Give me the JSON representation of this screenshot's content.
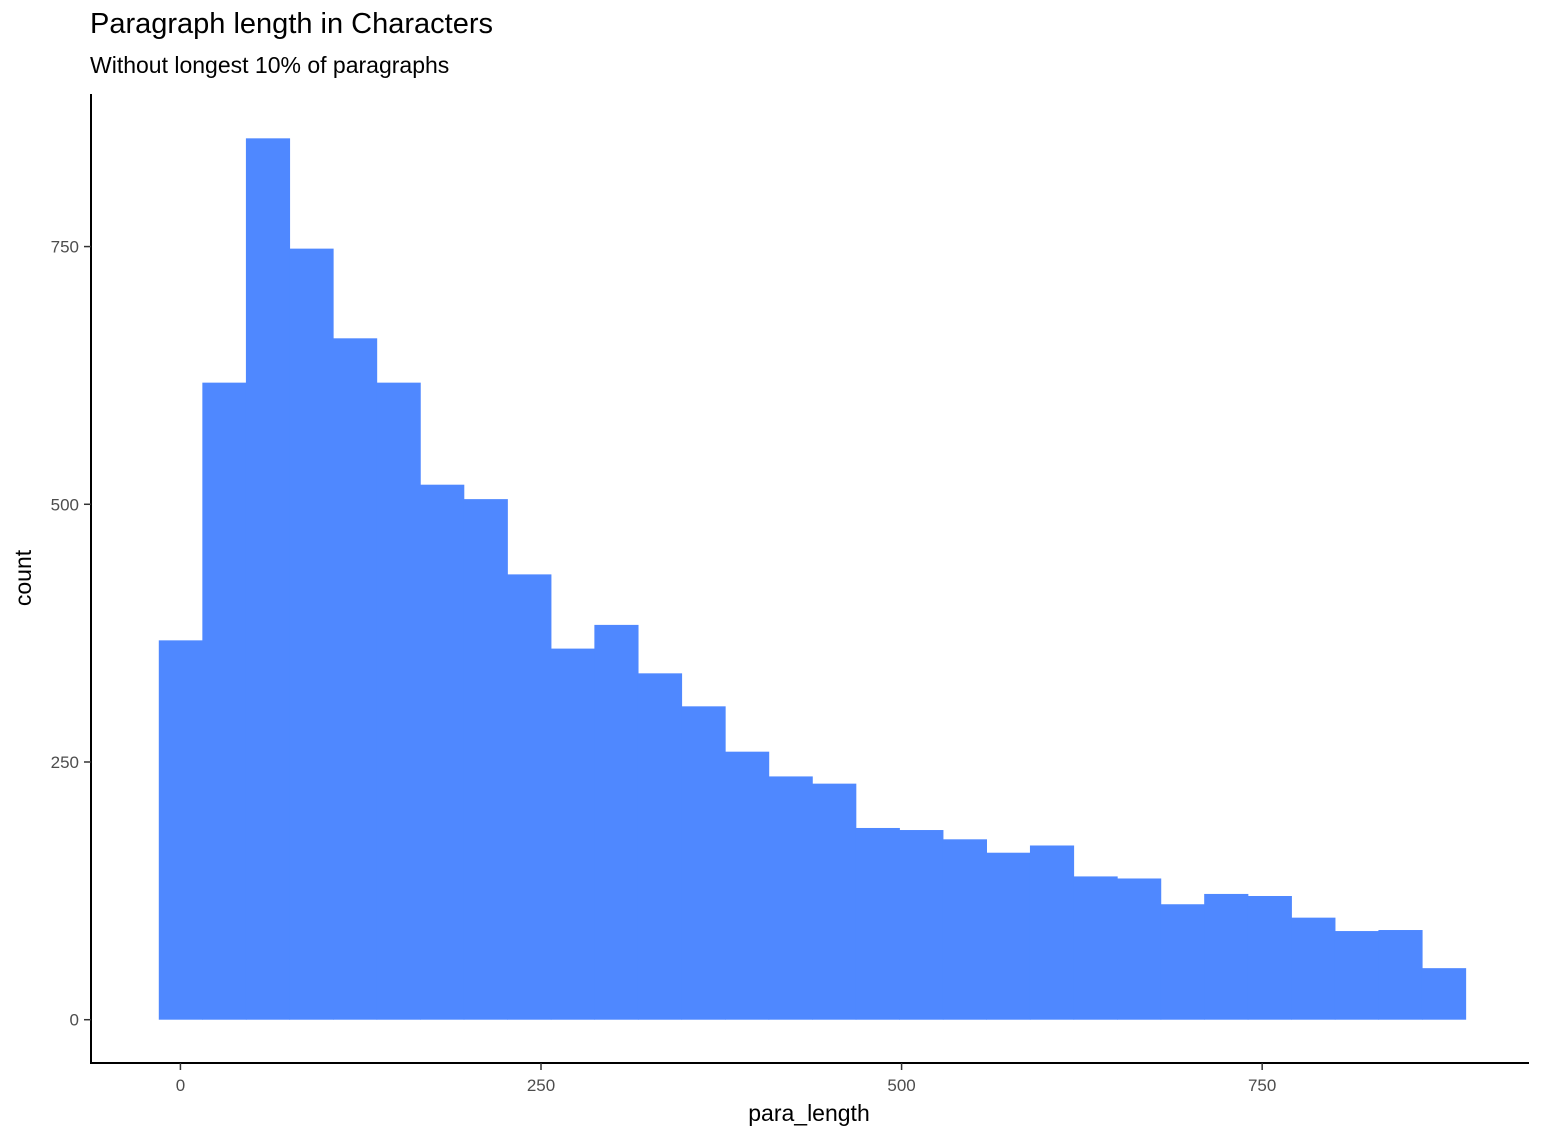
{
  "chart_data": {
    "type": "bar",
    "title": "Paragraph length in Characters",
    "subtitle": "Without longest 10% of paragraphs",
    "xlabel": "para_length",
    "ylabel": "count",
    "bar_color": "#4F88FF",
    "bin_width": 30.2,
    "first_bin_start": -15,
    "x_ticks": [
      0,
      250,
      500,
      750
    ],
    "y_ticks": [
      0,
      250,
      500,
      750
    ],
    "xlim": [
      -62,
      935
    ],
    "ylim": [
      -42,
      898
    ],
    "grid": false,
    "counts": [
      368,
      618,
      855,
      748,
      661,
      618,
      519,
      505,
      432,
      360,
      383,
      336,
      304,
      260,
      236,
      229,
      186,
      184,
      175,
      162,
      169,
      139,
      137,
      112,
      122,
      120,
      99,
      86,
      87,
      50
    ]
  }
}
